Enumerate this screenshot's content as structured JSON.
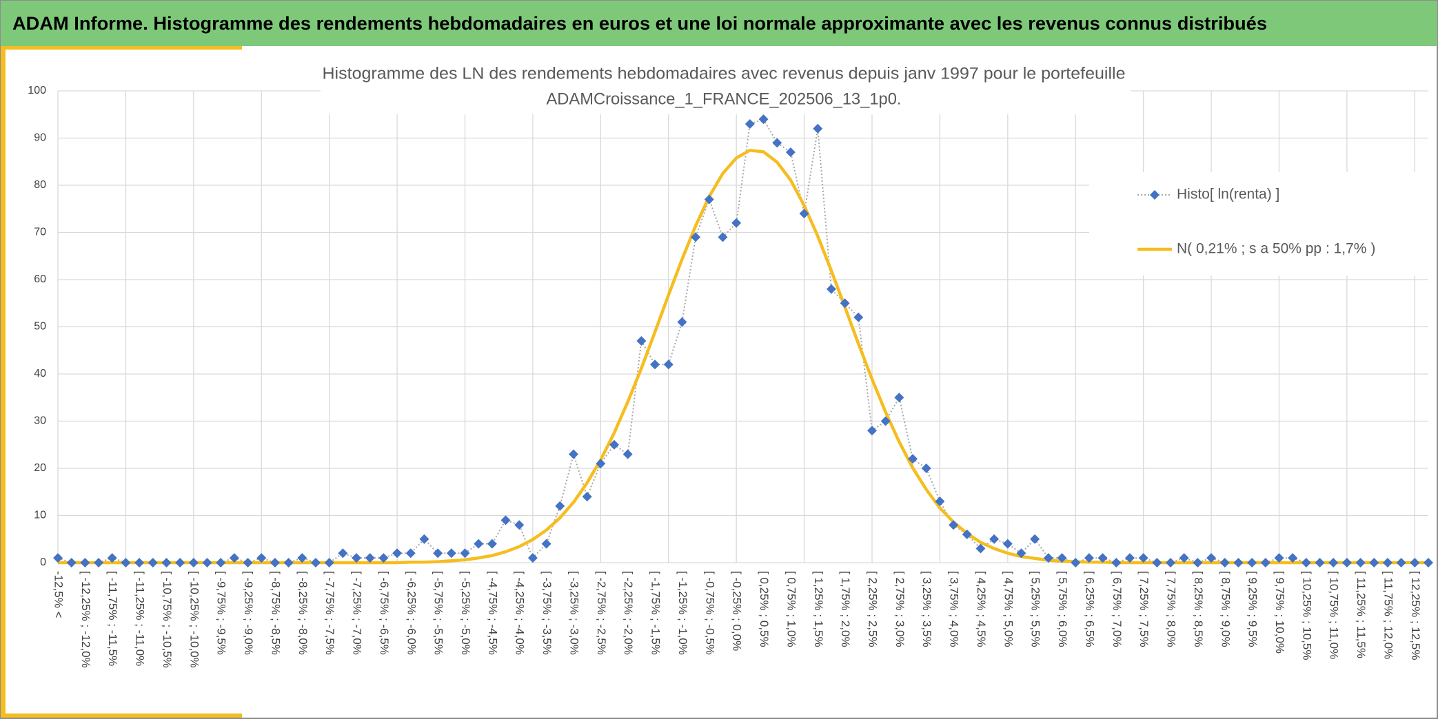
{
  "header": "ADAM Informe. Histogramme des rendements hebdomadaires en euros et une loi normale approximante avec les revenus connus distribués",
  "chart_data": {
    "type": "line",
    "title": [
      "Histogramme des LN des rendements hebdomadaires avec revenus depuis janv 1997 pour le portefeuille",
      "ADAMCroissance_1_FRANCE_202506_13_1p0."
    ],
    "categories": [
      "-12,5% <",
      null,
      "[ -12,25% ; -12,0%",
      null,
      "[ -11,75% ; -11,5%",
      null,
      "[ -11,25% ; -11,0%",
      null,
      "[ -10,75% ; -10,5%",
      null,
      "[ -10,25% ; -10,0%",
      null,
      "[ -9,75% ; -9,5%",
      null,
      "[ -9,25% ; -9,0%",
      null,
      "[ -8,75% ; -8,5%",
      null,
      "[ -8,25% ; -8,0%",
      null,
      "[ -7,75% ; -7,5%",
      null,
      "[ -7,25% ; -7,0%",
      null,
      "[ -6,75% ; -6,5%",
      null,
      "[ -6,25% ; -6,0%",
      null,
      "[ -5,75% ; -5,5%",
      null,
      "[ -5,25% ; -5,0%",
      null,
      "[ -4,75% ; -4,5%",
      null,
      "[ -4,25% ; -4,0%",
      null,
      "[ -3,75% ; -3,5%",
      null,
      "[ -3,25% ; -3,0%",
      null,
      "[ -2,75% ; -2,5%",
      null,
      "[ -2,25% ; -2,0%",
      null,
      "[ -1,75% ; -1,5%",
      null,
      "[ -1,25% ; -1,0%",
      null,
      "[ -0,75% ; -0,5%",
      null,
      "[ -0,25% ; 0,0%",
      null,
      "[ 0,25% ; 0,5%",
      null,
      "[ 0,75% ; 1,0%",
      null,
      "[ 1,25% ; 1,5%",
      null,
      "[ 1,75% ; 2,0%",
      null,
      "[ 2,25% ; 2,5%",
      null,
      "[ 2,75% ; 3,0%",
      null,
      "[ 3,25% ; 3,5%",
      null,
      "[ 3,75% ; 4,0%",
      null,
      "[ 4,25% ; 4,5%",
      null,
      "[ 4,75% ; 5,0%",
      null,
      "[ 5,25% ; 5,5%",
      null,
      "[ 5,75% ; 6,0%",
      null,
      "[ 6,25% ; 6,5%",
      null,
      "[ 6,75% ; 7,0%",
      null,
      "[ 7,25% ; 7,5%",
      null,
      "[ 7,75% ; 8,0%",
      null,
      "[ 8,25% ; 8,5%",
      null,
      "[ 8,75% ; 9,0%",
      null,
      "[ 9,25% ; 9,5%",
      null,
      "[ 9,75% ; 10,0%",
      null,
      "[ 10,25% ; 10,5%",
      null,
      "[ 10,75% ; 11,0%",
      null,
      "[ 11,25% ; 11,5%",
      null,
      "[ 11,75% ; 12,0%",
      null,
      "[ 12,25% ; 12,5%",
      null
    ],
    "series": [
      {
        "name": "Histo[ ln(renta) ]",
        "color": "#4472c4",
        "line_color": "#a6a6a6",
        "values": [
          1,
          0,
          0,
          0,
          1,
          0,
          0,
          0,
          0,
          0,
          0,
          0,
          0,
          1,
          0,
          1,
          0,
          0,
          1,
          0,
          0,
          2,
          1,
          1,
          1,
          2,
          2,
          5,
          2,
          2,
          2,
          4,
          4,
          9,
          8,
          1,
          4,
          12,
          23,
          14,
          21,
          25,
          23,
          47,
          42,
          42,
          51,
          69,
          77,
          69,
          72,
          93,
          94,
          89,
          87,
          74,
          92,
          58,
          55,
          52,
          28,
          30,
          35,
          22,
          20,
          13,
          8,
          6,
          3,
          5,
          4,
          2,
          5,
          1,
          1,
          0,
          1,
          1,
          0,
          1,
          1,
          0,
          0,
          1,
          0,
          1,
          0,
          0,
          0,
          0,
          1,
          1,
          0,
          0,
          0,
          0,
          0,
          0,
          0,
          0,
          0,
          0
        ]
      },
      {
        "name": "N( 0,21% ; s a 50% pp : 1,7% )",
        "color": "#f5bd1f",
        "values": [
          0,
          0,
          0,
          0,
          0,
          0,
          0,
          0,
          0,
          0,
          0,
          0,
          0,
          0,
          0,
          0,
          0,
          0,
          0,
          0,
          0,
          0,
          0,
          0,
          0,
          0,
          0.1,
          0.1,
          0.2,
          0.4,
          0.6,
          1.0,
          1.5,
          2.3,
          3.4,
          4.9,
          6.9,
          9.5,
          12.8,
          16.9,
          21.8,
          27.5,
          34.1,
          41.2,
          48.9,
          56.7,
          64.3,
          71.4,
          77.6,
          82.5,
          85.8,
          87.4,
          87.1,
          84.9,
          81.1,
          75.7,
          69.2,
          61.9,
          54.2,
          46.4,
          38.9,
          31.9,
          25.6,
          20.1,
          15.5,
          11.6,
          8.6,
          6.2,
          4.3,
          3.0,
          2.0,
          1.3,
          0.9,
          0.5,
          0.3,
          0.2,
          0.1,
          0.1,
          0,
          0,
          0,
          0,
          0,
          0,
          0,
          0,
          0,
          0,
          0,
          0,
          0,
          0,
          0,
          0,
          0,
          0,
          0,
          0,
          0,
          0,
          0,
          0
        ]
      }
    ],
    "ylim": [
      0,
      100
    ],
    "yticks": [
      0,
      10,
      20,
      30,
      40,
      50,
      60,
      70,
      80,
      90,
      100
    ],
    "grid": true,
    "legend": "right"
  }
}
